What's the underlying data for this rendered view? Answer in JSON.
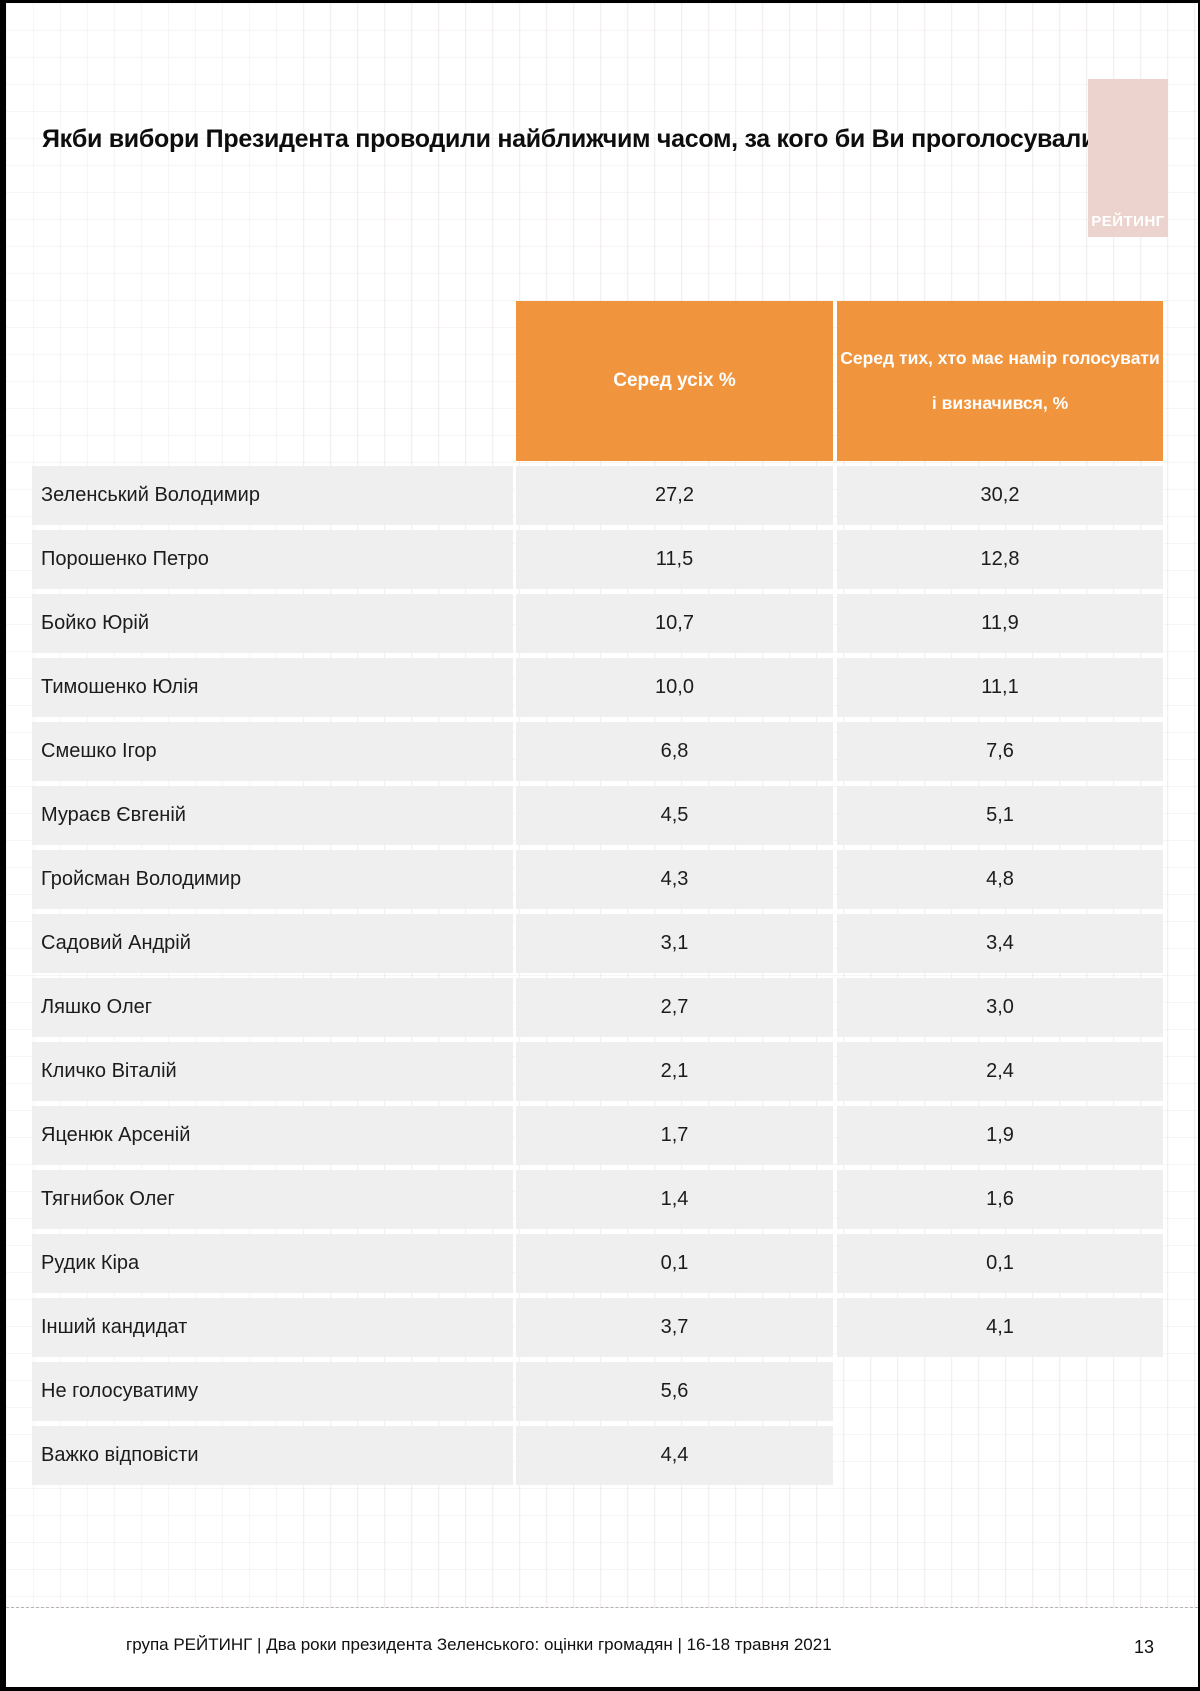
{
  "colors": {
    "accent_orange": "#F0943E",
    "row_gray": "#EFEFEF",
    "logo_pink": "#ECD3CE",
    "header_text_color": "#FFFFFF"
  },
  "logo": {
    "text": "РЕЙТИНГ"
  },
  "footer": {
    "text": "група РЕЙТИНГ | Два роки президента Зеленського: оцінки громадян | 16-18 травня 2021",
    "page_number": "13"
  },
  "chart_data": {
    "type": "table",
    "title": "Якби вибори Президента проводили найближчим часом, за кого би Ви проголосували?",
    "columns": [
      "",
      "Серед усіх %",
      "Серед тих, хто має намір голосувати і визначився, %"
    ],
    "rows": [
      [
        "Зеленський Володимир",
        "27,2",
        "30,2"
      ],
      [
        "Порошенко Петро",
        "11,5",
        "12,8"
      ],
      [
        "Бойко Юрій",
        "10,7",
        "11,9"
      ],
      [
        "Тимошенко Юлія",
        "10,0",
        "11,1"
      ],
      [
        "Смешко Ігор",
        "6,8",
        "7,6"
      ],
      [
        "Мураєв Євгеній",
        "4,5",
        "5,1"
      ],
      [
        "Гройсман Володимир",
        "4,3",
        "4,8"
      ],
      [
        "Садовий Андрій",
        "3,1",
        "3,4"
      ],
      [
        "Ляшко Олег",
        "2,7",
        "3,0"
      ],
      [
        "Кличко Віталій",
        "2,1",
        "2,4"
      ],
      [
        "Яценюк Арсеній",
        "1,7",
        "1,9"
      ],
      [
        "Тягнибок Олег",
        "1,4",
        "1,6"
      ],
      [
        "Рудик Кіра",
        "0,1",
        "0,1"
      ],
      [
        "Інший кандидат",
        "3,7",
        "4,1"
      ],
      [
        "Не голосуватиму",
        "5,6",
        ""
      ],
      [
        "Важко відповісти",
        "4,4",
        ""
      ]
    ]
  }
}
